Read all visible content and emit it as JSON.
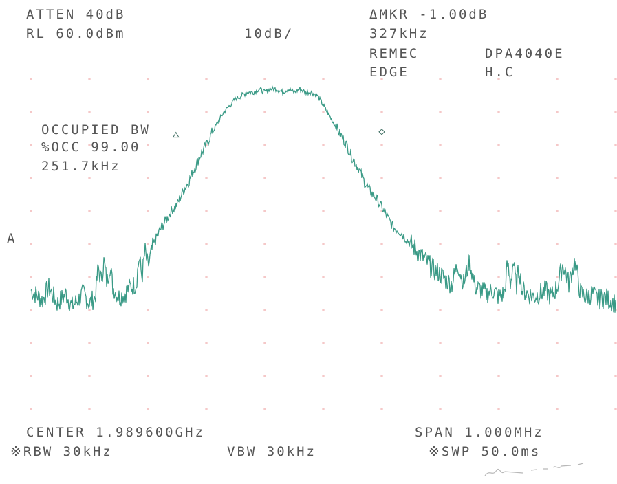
{
  "header": {
    "atten": "ATTEN 40dB",
    "ref_level": "RL 60.0dBm",
    "scale": "10dB/",
    "delta_marker": "ΔMKR -1.00dB",
    "marker_freq": "327kHz",
    "company": "REMEC",
    "model": "DPA4040E",
    "test": "EDGE",
    "mode": "H.C"
  },
  "measurement": {
    "title": "OCCUPIED BW",
    "percent": "%OCC 99.00",
    "value": "251.7kHz"
  },
  "trace_label": "A",
  "footer": {
    "center": "CENTER 1.989600GHz",
    "span": "SPAN 1.000MHz",
    "rbw": "※RBW 30kHz",
    "vbw": "VBW 30kHz",
    "sweep": "※SWP 50.0ms"
  },
  "signature": "signature-scribble",
  "colors": {
    "trace": "#3a9a86",
    "grid": "#f2b6b6",
    "text": "#555555"
  },
  "chart_data": {
    "type": "line",
    "x_unit": "kHz offset from center",
    "y_unit": "dBm",
    "xlim": [
      -500,
      500
    ],
    "ylim": [
      -40,
      60
    ],
    "grid": true,
    "markers": [
      {
        "symbol": "triangle",
        "x": -252,
        "y": 43
      },
      {
        "symbol": "diamond",
        "x": 100,
        "y": 44
      }
    ],
    "series": [
      {
        "x": [
          -500,
          -480,
          -470,
          -455,
          -440,
          -430,
          -420,
          -410,
          -400,
          -390,
          -385,
          -380,
          -375,
          -370,
          -365,
          -360,
          -350,
          -340,
          -330,
          -320,
          -315,
          -310,
          -305,
          -300,
          -290,
          -280,
          -270,
          -260,
          -250,
          -240,
          -230,
          -220,
          -210,
          -200,
          -190,
          -180,
          -170,
          -160,
          -150,
          -140,
          -130,
          -120,
          -110,
          -100,
          -90,
          -80,
          -70,
          -60,
          -50,
          -40,
          -30,
          -20,
          -10,
          0,
          10,
          20,
          30,
          40,
          50,
          60,
          70,
          80,
          90,
          100,
          110,
          120,
          130,
          140,
          150,
          160,
          170,
          180,
          190,
          200,
          210,
          220,
          230,
          240,
          250,
          260,
          270,
          280,
          290,
          300,
          310,
          315,
          320,
          325,
          330,
          335,
          340,
          350,
          360,
          370,
          380,
          390,
          400,
          410,
          420,
          430,
          440,
          450,
          460,
          470,
          480,
          490,
          500
        ],
        "y": [
          -4,
          -7,
          -3,
          -8,
          -5,
          -9,
          -7,
          -5,
          -8,
          -6,
          3,
          -1,
          5,
          -2,
          4,
          -3,
          -6,
          -5,
          -3,
          -2,
          6,
          0,
          8,
          3,
          10,
          14,
          17,
          20,
          22,
          26,
          29,
          33,
          37,
          40,
          44,
          47,
          50,
          52,
          54,
          55,
          56,
          56,
          57,
          56,
          57,
          57,
          56,
          57,
          56,
          57,
          56,
          56,
          55,
          52,
          49,
          46,
          43,
          40,
          36,
          33,
          29,
          26,
          24,
          21,
          18,
          15,
          14,
          12,
          10,
          8,
          6,
          4,
          2,
          1,
          -1,
          -2,
          4,
          -2,
          5,
          -3,
          -4,
          -5,
          -4,
          -6,
          -5,
          4,
          -2,
          5,
          -3,
          3,
          -4,
          -5,
          -6,
          -5,
          -4,
          -6,
          -3,
          4,
          -2,
          5,
          -5,
          -6,
          -5,
          -7,
          -6,
          -7,
          -8
        ]
      }
    ]
  }
}
